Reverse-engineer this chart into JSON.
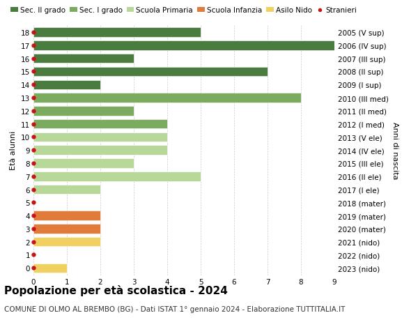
{
  "ages": [
    18,
    17,
    16,
    15,
    14,
    13,
    12,
    11,
    10,
    9,
    8,
    7,
    6,
    5,
    4,
    3,
    2,
    1,
    0
  ],
  "right_labels": [
    "2005 (V sup)",
    "2006 (IV sup)",
    "2007 (III sup)",
    "2008 (II sup)",
    "2009 (I sup)",
    "2010 (III med)",
    "2011 (II med)",
    "2012 (I med)",
    "2013 (V ele)",
    "2014 (IV ele)",
    "2015 (III ele)",
    "2016 (II ele)",
    "2017 (I ele)",
    "2018 (mater)",
    "2019 (mater)",
    "2020 (mater)",
    "2021 (nido)",
    "2022 (nido)",
    "2023 (nido)"
  ],
  "values": [
    5,
    9,
    3,
    7,
    2,
    8,
    3,
    4,
    4,
    4,
    3,
    5,
    2,
    0,
    2,
    2,
    2,
    0,
    1
  ],
  "categories": {
    "Sec. II grado": {
      "ages": [
        18,
        17,
        16,
        15,
        14
      ],
      "color": "#4a7c3f"
    },
    "Sec. I grado": {
      "ages": [
        13,
        12,
        11
      ],
      "color": "#7aab5e"
    },
    "Scuola Primaria": {
      "ages": [
        10,
        9,
        8,
        7,
        6
      ],
      "color": "#b8d89a"
    },
    "Scuola Infanzia": {
      "ages": [
        5,
        4,
        3
      ],
      "color": "#e07b3a"
    },
    "Asilo Nido": {
      "ages": [
        2,
        1,
        0
      ],
      "color": "#f0d060"
    }
  },
  "stranieri_dot_color": "#cc1111",
  "bar_height": 0.72,
  "xlim": [
    0,
    9
  ],
  "ylim": [
    -0.55,
    18.55
  ],
  "ylabel": "Età alunni",
  "right_ylabel": "Anni di nascita",
  "title": "Popolazione per età scolastica - 2024",
  "subtitle": "COMUNE DI OLMO AL BREMBO (BG) - Dati ISTAT 1° gennaio 2024 - Elaborazione TUTTITALIA.IT",
  "title_fontsize": 11,
  "subtitle_fontsize": 7.5,
  "legend_fontsize": 7.5,
  "tick_fontsize": 7.5,
  "ylabel_fontsize": 8,
  "background_color": "#ffffff",
  "grid_color": "#cccccc"
}
